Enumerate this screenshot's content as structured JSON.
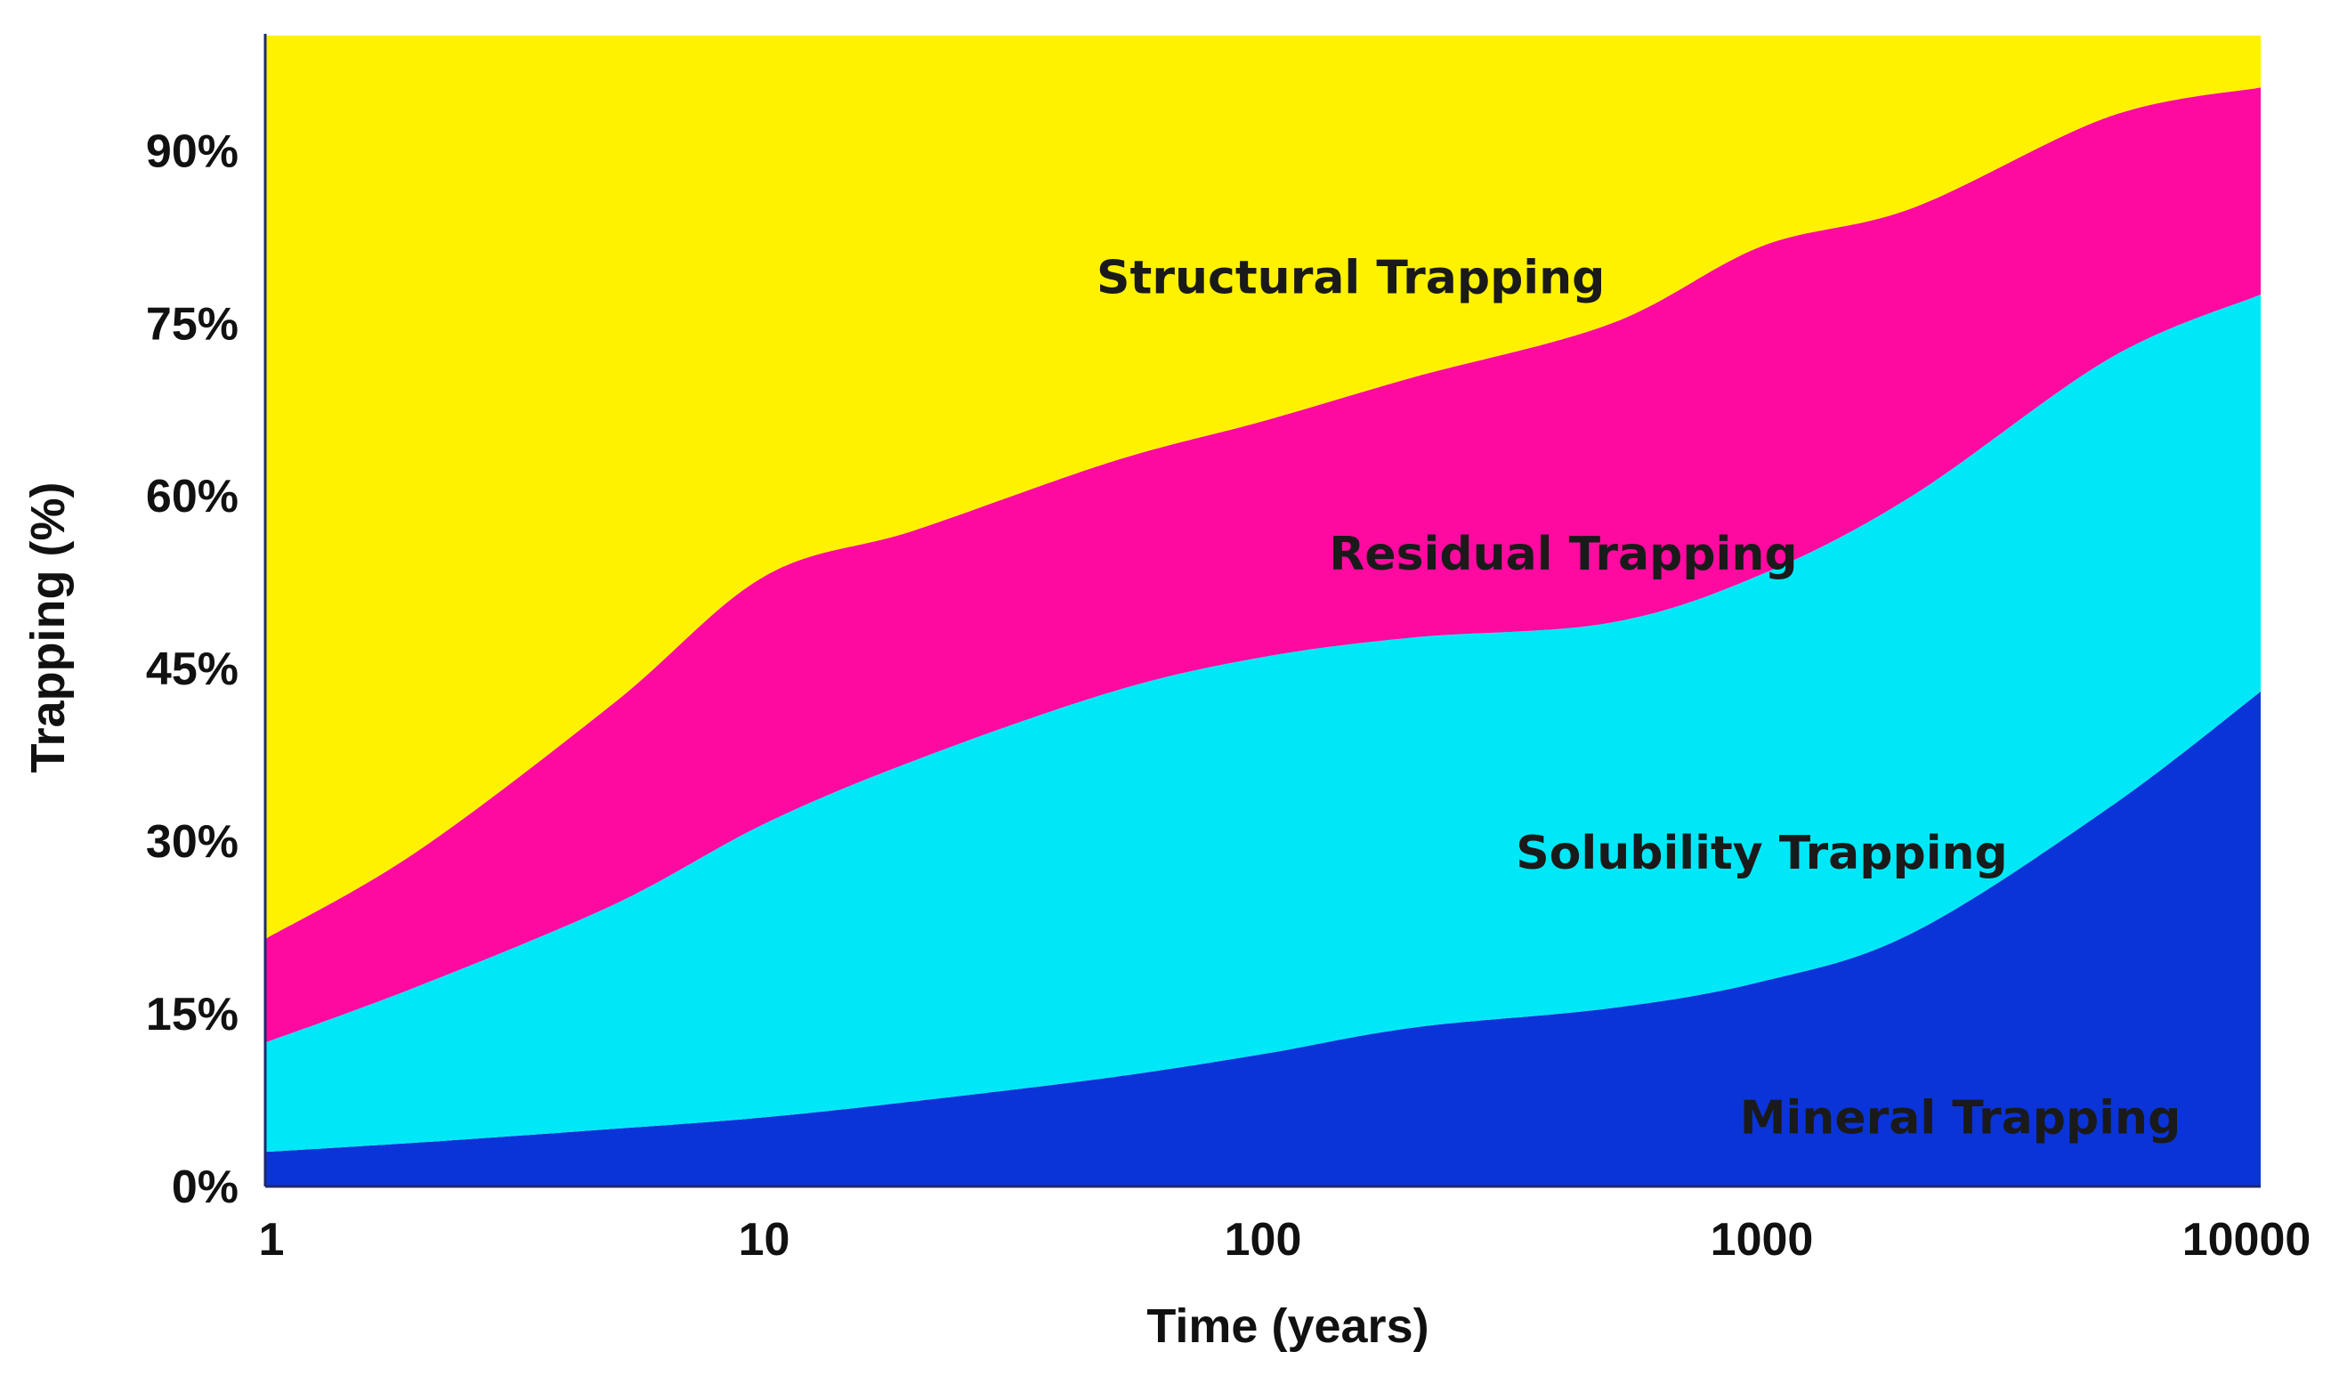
{
  "chart_data": {
    "type": "area",
    "stacked": true,
    "x_scale": "log",
    "xlim": [
      1,
      10000
    ],
    "ylim": [
      0,
      100
    ],
    "xticks": [
      1,
      10,
      100,
      1000,
      10000
    ],
    "xtick_labels": [
      "1",
      "10",
      "100",
      "1000",
      "10000"
    ],
    "yticks": [
      0,
      15,
      30,
      45,
      60,
      75,
      90
    ],
    "ytick_labels": [
      "0%",
      "15%",
      "30%",
      "45%",
      "60%",
      "75%",
      "90%"
    ],
    "xlabel": "Time (years)",
    "ylabel": "Trapping (%)",
    "title": "",
    "grid": false,
    "x": [
      1,
      2,
      5,
      10,
      20,
      50,
      100,
      200,
      500,
      1000,
      2000,
      5000,
      10000
    ],
    "series": [
      {
        "name": "Mineral Trapping",
        "color": "#0a34d8",
        "values": [
          3.0,
          3.8,
          5.0,
          6.0,
          7.4,
          9.5,
          11.5,
          13.8,
          15.5,
          17.8,
          22.0,
          33.0,
          43.0
        ]
      },
      {
        "name": "Solubility Trapping",
        "color": "#00e8f8",
        "values": [
          9.5,
          13.5,
          19.5,
          25.5,
          29.6,
          33.5,
          34.5,
          33.9,
          33.5,
          35.4,
          38.0,
          39.0,
          34.5
        ]
      },
      {
        "name": "Residual Trapping",
        "color": "#ff0aa0",
        "values": [
          9.0,
          11.7,
          17.5,
          21.5,
          20.0,
          20.0,
          20.5,
          22.6,
          26.0,
          28.5,
          25.0,
          21.0,
          18.0
        ]
      },
      {
        "name": "Structural Trapping",
        "color": "#fff200",
        "values": [
          78.5,
          71.0,
          58.0,
          47.0,
          43.0,
          37.0,
          33.5,
          29.7,
          25.0,
          18.3,
          15.0,
          7.0,
          4.5
        ]
      }
    ],
    "area_labels": [
      {
        "text": "Structural Trapping",
        "x": 150,
        "y": 79
      },
      {
        "text": "Residual Trapping",
        "x": 400,
        "y": 55
      },
      {
        "text": "Solubility Trapping",
        "x": 1000,
        "y": 29
      },
      {
        "text": "Mineral Trapping",
        "x": 2500,
        "y": 6
      }
    ]
  }
}
